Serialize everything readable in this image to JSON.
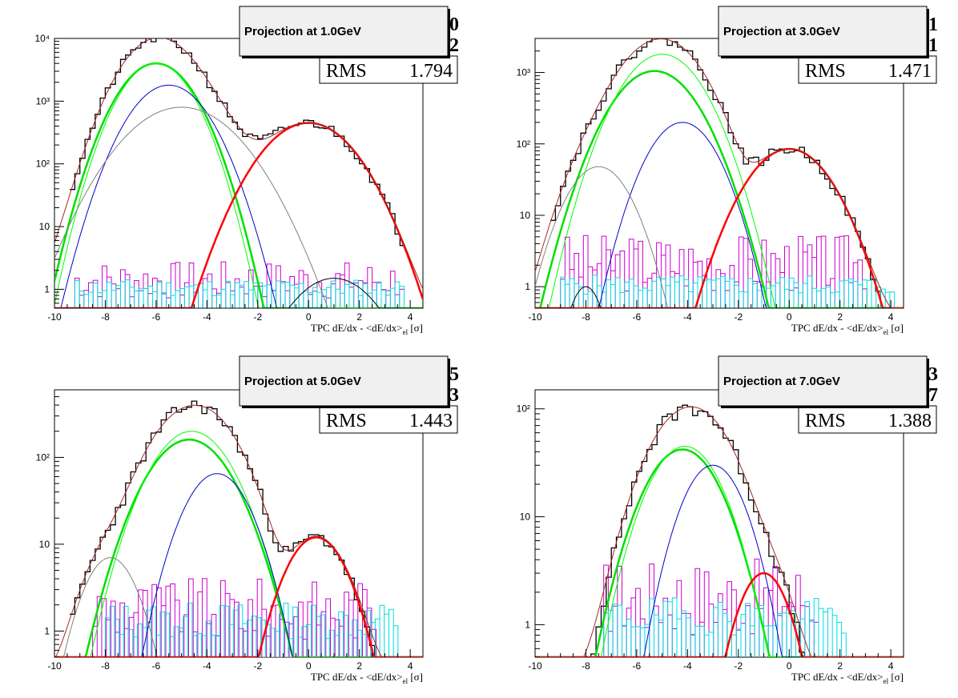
{
  "colors": {
    "data": "#000000",
    "total_fit": "#a52a2a",
    "electron": "#ff0000",
    "pion": "#00e000",
    "pion_alt": "#00ff00",
    "kaon": "#0000cc",
    "proton": "#808080",
    "deuteron": "#000000",
    "resid_1": "#cc00cc",
    "resid_2": "#00dddd"
  },
  "chart_data": [
    {
      "type": "line",
      "log_y": true,
      "title": "Projection at 1.0GeV",
      "stats": {
        "label": "RMS",
        "value": "1.794",
        "partial_values": [
          "0",
          "2"
        ]
      },
      "xlabel": "TPC dE/dx - <dE/dx>|el [σ]",
      "xlabel_main": "TPC dE/dx - <dE/dx>",
      "xlabel_sub": "el",
      "xlabel_end": " [σ]",
      "xlim": [
        -10,
        4.5
      ],
      "ylim": [
        0.5,
        10000
      ],
      "x_ticks": [
        -10,
        -8,
        -6,
        -4,
        -2,
        0,
        2,
        4
      ],
      "y_ticks": [
        1,
        10,
        100,
        1000,
        10000
      ],
      "y_tick_labels": [
        "1",
        "10",
        "10²",
        "10³",
        "10⁴"
      ],
      "series": [
        {
          "role": "pion",
          "A": 4000,
          "mu": -6.0,
          "sig": 1.0,
          "c": "pion",
          "w": 2.5
        },
        {
          "role": "pion_alt",
          "A": 4000,
          "mu": -6.0,
          "sig": 0.95,
          "c": "pion_alt",
          "w": 1
        },
        {
          "role": "kaon",
          "A": 1800,
          "mu": -5.5,
          "sig": 1.05,
          "c": "kaon",
          "w": 1
        },
        {
          "role": "proton",
          "A": 800,
          "mu": -5.0,
          "sig": 1.5,
          "c": "proton",
          "w": 1
        },
        {
          "role": "electron",
          "A": 450,
          "mu": 0.0,
          "sig": 1.25,
          "c": "electron",
          "w": 2.5
        },
        {
          "role": "deuteron",
          "A": 1.5,
          "mu": 1.0,
          "sig": 1.2,
          "c": "deuteron",
          "w": 1
        }
      ],
      "residuals": [
        {
          "c": "resid_1",
          "level": 1.2,
          "spread": 1.8,
          "xmin": -9.2,
          "xmax": 3.6,
          "seed": 7
        },
        {
          "c": "resid_2",
          "level": 1.0,
          "spread": 1.3,
          "xmin": -9.2,
          "xmax": 3.6,
          "seed": 11
        }
      ]
    },
    {
      "type": "line",
      "log_y": true,
      "title": "Projection at 3.0GeV",
      "stats": {
        "label": "RMS",
        "value": "1.471",
        "partial_values": [
          "1",
          "1"
        ]
      },
      "xlabel": "TPC dE/dx - <dE/dx>|el [σ]",
      "xlabel_main": "TPC dE/dx - <dE/dx>",
      "xlabel_sub": "el",
      "xlabel_end": " [σ]",
      "xlim": [
        -10,
        4.5
      ],
      "ylim": [
        0.5,
        3000
      ],
      "x_ticks": [
        -10,
        -8,
        -6,
        -4,
        -2,
        0,
        2,
        4
      ],
      "y_ticks": [
        1,
        10,
        100,
        1000
      ],
      "y_tick_labels": [
        "1",
        "10",
        "10²",
        "10³"
      ],
      "series": [
        {
          "role": "pion",
          "A": 1050,
          "mu": -5.3,
          "sig": 1.15,
          "c": "pion",
          "w": 2.5
        },
        {
          "role": "pion_alt",
          "A": 1800,
          "mu": -5.0,
          "sig": 1.1,
          "c": "pion_alt",
          "w": 1
        },
        {
          "role": "kaon",
          "A": 200,
          "mu": -4.2,
          "sig": 0.95,
          "c": "kaon",
          "w": 1
        },
        {
          "role": "proton",
          "A": 48,
          "mu": -7.5,
          "sig": 0.9,
          "c": "proton",
          "w": 1
        },
        {
          "role": "electron",
          "A": 85,
          "mu": 0.0,
          "sig": 1.15,
          "c": "electron",
          "w": 2.5
        },
        {
          "role": "deuteron",
          "A": 1.0,
          "mu": -8.0,
          "sig": 0.5,
          "c": "deuteron",
          "w": 1
        }
      ],
      "residuals": [
        {
          "c": "resid_1",
          "level": 1.8,
          "spread": 2.2,
          "xmin": -9.0,
          "xmax": 3.0,
          "seed": 3
        },
        {
          "c": "resid_2",
          "level": 1.0,
          "spread": 1.3,
          "xmin": -9.0,
          "xmax": 4.0,
          "seed": 5
        }
      ]
    },
    {
      "type": "line",
      "log_y": true,
      "title": "Projection at 5.0GeV",
      "stats": {
        "label": "RMS",
        "value": "1.443",
        "partial_values": [
          "5",
          "3"
        ]
      },
      "xlabel": "TPC dE/dx - <dE/dx>|el [σ]",
      "xlabel_main": "TPC dE/dx - <dE/dx>",
      "xlabel_sub": "el",
      "xlabel_end": " [σ]",
      "xlim": [
        -10,
        4.5
      ],
      "ylim": [
        0.5,
        600
      ],
      "x_ticks": [
        -10,
        -8,
        -6,
        -4,
        -2,
        0,
        2,
        4
      ],
      "y_ticks": [
        1,
        10,
        100
      ],
      "y_tick_labels": [
        "1",
        "10",
        "10²"
      ],
      "series": [
        {
          "role": "pion",
          "A": 160,
          "mu": -4.7,
          "sig": 1.2,
          "c": "pion",
          "w": 2.5
        },
        {
          "role": "pion_alt",
          "A": 200,
          "mu": -4.6,
          "sig": 1.15,
          "c": "pion_alt",
          "w": 1
        },
        {
          "role": "kaon",
          "A": 65,
          "mu": -3.6,
          "sig": 0.95,
          "c": "kaon",
          "w": 1
        },
        {
          "role": "proton",
          "A": 7,
          "mu": -7.8,
          "sig": 0.8,
          "c": "proton",
          "w": 1
        },
        {
          "role": "electron",
          "A": 12,
          "mu": 0.3,
          "sig": 0.9,
          "c": "electron",
          "w": 2.5
        }
      ],
      "residuals": [
        {
          "c": "resid_1",
          "level": 1.5,
          "spread": 2.0,
          "xmin": -8.5,
          "xmax": 2.5,
          "seed": 9
        },
        {
          "c": "resid_2",
          "level": 1.2,
          "spread": 1.5,
          "xmin": -8.0,
          "xmax": 3.4,
          "seed": 13
        }
      ]
    },
    {
      "type": "line",
      "log_y": true,
      "title": "Projection at 7.0GeV",
      "stats": {
        "label": "RMS",
        "value": "1.388",
        "partial_values": [
          "3",
          "7"
        ]
      },
      "xlabel": "TPC dE/dx - <dE/dx>|el [σ]",
      "xlabel_main": "TPC dE/dx - <dE/dx>",
      "xlabel_sub": "el",
      "xlabel_end": " [σ]",
      "xlim": [
        -10,
        4.5
      ],
      "ylim": [
        0.5,
        150
      ],
      "x_ticks": [
        -10,
        -8,
        -6,
        -4,
        -2,
        0,
        2,
        4
      ],
      "y_ticks": [
        1,
        10,
        100
      ],
      "y_tick_labels": [
        "1",
        "10",
        "10²"
      ],
      "series": [
        {
          "role": "pion",
          "A": 42,
          "mu": -4.2,
          "sig": 1.15,
          "c": "pion",
          "w": 2.5
        },
        {
          "role": "pion_alt",
          "A": 45,
          "mu": -4.1,
          "sig": 1.1,
          "c": "pion_alt",
          "w": 1
        },
        {
          "role": "kaon",
          "A": 30,
          "mu": -3.0,
          "sig": 0.95,
          "c": "kaon",
          "w": 1
        },
        {
          "role": "electron",
          "A": 3,
          "mu": -1.0,
          "sig": 0.8,
          "c": "electron",
          "w": 2.5
        }
      ],
      "residuals": [
        {
          "c": "resid_1",
          "level": 1.5,
          "spread": 2.0,
          "xmin": -7.3,
          "xmax": 1.0,
          "seed": 17
        },
        {
          "c": "resid_2",
          "level": 1.1,
          "spread": 1.4,
          "xmin": -7.3,
          "xmax": 2.2,
          "seed": 19
        }
      ]
    }
  ]
}
